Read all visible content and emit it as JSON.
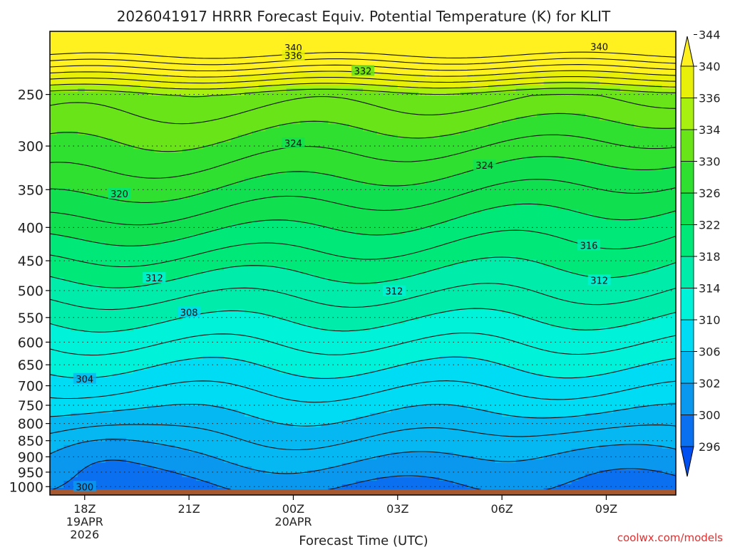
{
  "chart_data": {
    "type": "heatmap",
    "title": "2026041917 HRRR Forecast Equiv. Potential Temperature (K) for KLIT",
    "xlabel": "Forecast Time (UTC)",
    "ylabel": "",
    "watermark": "coolwx.com/models",
    "x_ticks": [
      {
        "hour": 1,
        "label": [
          "18Z",
          "19APR",
          "2026"
        ]
      },
      {
        "hour": 4,
        "label": [
          "21Z"
        ]
      },
      {
        "hour": 7,
        "label": [
          "00Z",
          "20APR"
        ]
      },
      {
        "hour": 10,
        "label": [
          "03Z"
        ]
      },
      {
        "hour": 13,
        "label": [
          "06Z"
        ]
      },
      {
        "hour": 16,
        "label": [
          "09Z"
        ]
      }
    ],
    "xlim_hours": [
      0,
      18
    ],
    "y_scale": "log",
    "ylim": [
      1030,
      200
    ],
    "y_ticks": [
      250,
      300,
      350,
      400,
      450,
      500,
      550,
      600,
      650,
      700,
      750,
      800,
      850,
      900,
      950,
      1000
    ],
    "colorbar": {
      "levels": [
        296,
        300,
        302,
        306,
        310,
        314,
        318,
        322,
        326,
        330,
        334,
        336,
        340,
        344
      ],
      "colors": [
        "#0050f0",
        "#0a70f0",
        "#0a98ee",
        "#06b8f2",
        "#00dcf4",
        "#00f2d8",
        "#00ecaa",
        "#00e878",
        "#10e050",
        "#30e030",
        "#68e418",
        "#a8f010",
        "#e8f00a",
        "#fff020"
      ],
      "extend": "both"
    },
    "ground_color": "#a8582f",
    "contour_labels": [
      {
        "text": "340",
        "hour": 7.0,
        "p": 212
      },
      {
        "text": "340",
        "hour": 15.8,
        "p": 211
      },
      {
        "text": "336",
        "hour": 7.0,
        "p": 218
      },
      {
        "text": "332",
        "hour": 9.0,
        "p": 230
      },
      {
        "text": "324",
        "hour": 7.0,
        "p": 297
      },
      {
        "text": "324",
        "hour": 12.5,
        "p": 321
      },
      {
        "text": "320",
        "hour": 2.0,
        "p": 355
      },
      {
        "text": "316",
        "hour": 15.5,
        "p": 426
      },
      {
        "text": "312",
        "hour": 3.0,
        "p": 478
      },
      {
        "text": "312",
        "hour": 9.9,
        "p": 501
      },
      {
        "text": "312",
        "hour": 15.8,
        "p": 482
      },
      {
        "text": "308",
        "hour": 4.0,
        "p": 540
      },
      {
        "text": "304",
        "hour": 1.0,
        "p": 683
      },
      {
        "text": "300",
        "hour": 1.0,
        "p": 1000
      }
    ]
  }
}
